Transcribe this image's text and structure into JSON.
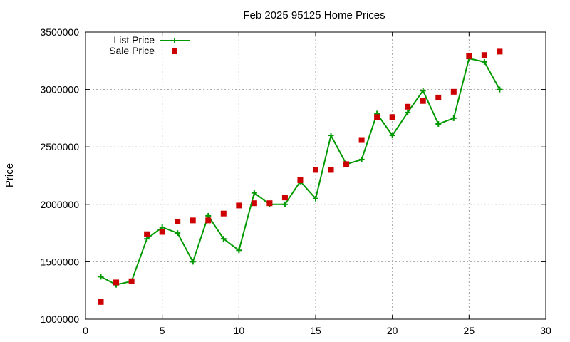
{
  "chart_data": {
    "type": "line",
    "title": "Feb 2025 95125 Home Prices",
    "xlabel": "",
    "ylabel": "Price",
    "xlim": [
      0,
      30
    ],
    "ylim": [
      1000000,
      3500000
    ],
    "xticks": [
      "0",
      "5",
      "10",
      "15",
      "20",
      "25",
      "30"
    ],
    "yticks": [
      "1000000",
      "1500000",
      "2000000",
      "2500000",
      "3000000",
      "3500000"
    ],
    "grid": true,
    "legend_position": "top-left",
    "series": [
      {
        "name": "List Price",
        "style": "line-with-plus-markers",
        "color": "#009900",
        "x": [
          1,
          2,
          3,
          4,
          5,
          6,
          7,
          8,
          9,
          10,
          11,
          12,
          13,
          14,
          15,
          16,
          17,
          18,
          19,
          20,
          21,
          22,
          23,
          24,
          25,
          26,
          27
        ],
        "y": [
          1370000,
          1300000,
          1330000,
          1700000,
          1800000,
          1750000,
          1500000,
          1900000,
          1700000,
          1600000,
          2100000,
          2000000,
          2000000,
          2200000,
          2050000,
          2600000,
          2350000,
          2390000,
          2790000,
          2600000,
          2800000,
          2990000,
          2700000,
          2750000,
          3270000,
          3240000,
          3000000
        ]
      },
      {
        "name": "Sale Price",
        "style": "square-markers",
        "color": "#cc0000",
        "x": [
          1,
          2,
          3,
          4,
          5,
          6,
          7,
          8,
          9,
          10,
          11,
          12,
          13,
          14,
          15,
          16,
          17,
          18,
          19,
          20,
          21,
          22,
          23,
          24,
          25,
          26,
          27
        ],
        "y": [
          1150000,
          1320000,
          1330000,
          1740000,
          1760000,
          1850000,
          1860000,
          1860000,
          1920000,
          1990000,
          2010000,
          2010000,
          2060000,
          2210000,
          2300000,
          2300000,
          2350000,
          2560000,
          2760000,
          2760000,
          2850000,
          2900000,
          2930000,
          2980000,
          3290000,
          3300000,
          3330000
        ]
      }
    ]
  }
}
